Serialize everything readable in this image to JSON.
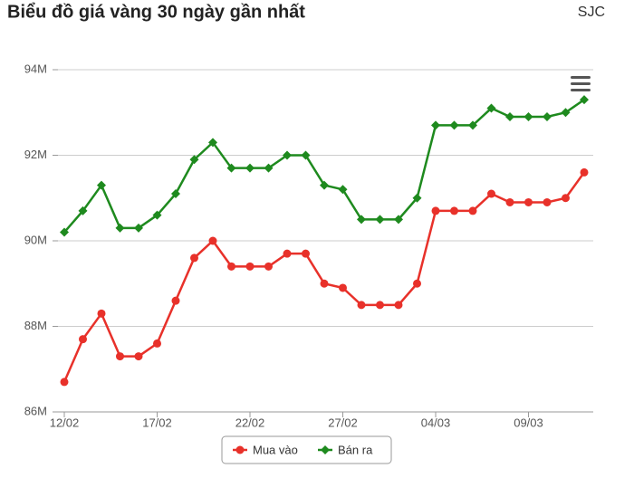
{
  "chart_data": {
    "type": "line",
    "title": "Biểu đồ giá vàng 30 ngày gần nhất",
    "subtitle": "SJC",
    "categories": [
      "12/02",
      null,
      null,
      null,
      null,
      "17/02",
      null,
      null,
      null,
      null,
      "22/02",
      null,
      null,
      null,
      null,
      "27/02",
      null,
      null,
      null,
      null,
      "04/03",
      null,
      null,
      null,
      null,
      "09/03",
      null,
      null,
      null
    ],
    "series": [
      {
        "name": "Mua vào",
        "color": "#e8312a",
        "marker": "circle",
        "values": [
          86.7,
          87.7,
          88.3,
          87.3,
          87.3,
          87.6,
          88.6,
          89.6,
          90.0,
          89.4,
          89.4,
          89.4,
          89.7,
          89.7,
          89.0,
          88.9,
          88.5,
          88.5,
          88.5,
          89.0,
          90.7,
          90.7,
          90.7,
          91.1,
          90.9,
          90.9,
          90.9,
          91.0,
          91.6
        ]
      },
      {
        "name": "Bán ra",
        "color": "#1e8a1e",
        "marker": "diamond",
        "values": [
          90.2,
          90.7,
          91.3,
          90.3,
          90.3,
          90.6,
          91.1,
          91.9,
          92.3,
          91.7,
          91.7,
          91.7,
          92.0,
          92.0,
          91.3,
          91.2,
          90.5,
          90.5,
          90.5,
          91.0,
          92.7,
          92.7,
          92.7,
          93.1,
          92.9,
          92.9,
          92.9,
          93.0,
          93.3
        ]
      }
    ],
    "ylim": [
      86,
      94
    ],
    "yticks": [
      {
        "value": 86,
        "label": "86M"
      },
      {
        "value": 88,
        "label": "88M"
      },
      {
        "value": 90,
        "label": "90M"
      },
      {
        "value": 92,
        "label": "92M"
      },
      {
        "value": 94,
        "label": "94M"
      }
    ],
    "grid": true,
    "legend": "bottom"
  }
}
